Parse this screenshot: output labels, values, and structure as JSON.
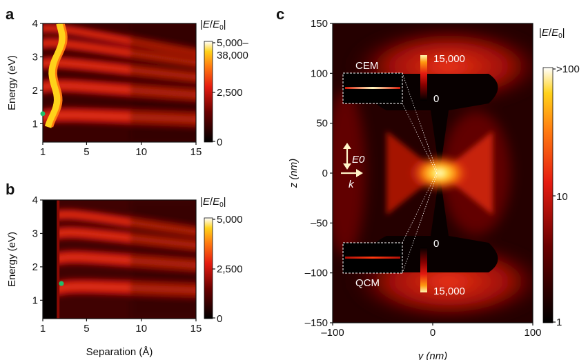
{
  "chart_data": [
    {
      "type": "heatmap",
      "panel_label": "a",
      "xlabel": "",
      "ylabel": "Energy (eV)",
      "xlim": [
        1,
        15
      ],
      "ylim": [
        0.45,
        4
      ],
      "xticks": [
        "1",
        "5",
        "10",
        "15"
      ],
      "yticks": [
        "1",
        "2",
        "3",
        "4"
      ],
      "xtick_values": [
        1,
        5,
        10,
        15
      ],
      "ytick_values": [
        1,
        2,
        3,
        4
      ],
      "colorbar": {
        "title": "|E/E0|",
        "labels": [
          "5,000–",
          "38,000",
          "2,500",
          "0"
        ],
        "range": [
          0,
          5000
        ]
      },
      "marker": {
        "x": 1,
        "y": 1.3,
        "color": "#1fbf6b"
      },
      "resonances": [
        1.3,
        2.2,
        2.9,
        3.5,
        3.95
      ],
      "onset": 1.0
    },
    {
      "type": "heatmap",
      "panel_label": "b",
      "xlabel": "Separation (Å)",
      "ylabel": "Energy (eV)",
      "xlim": [
        1,
        15
      ],
      "ylim": [
        0.45,
        4
      ],
      "xticks": [
        "1",
        "5",
        "10",
        "15"
      ],
      "yticks": [
        "1",
        "2",
        "3",
        "4"
      ],
      "xtick_values": [
        1,
        5,
        10,
        15
      ],
      "ytick_values": [
        1,
        2,
        3,
        4
      ],
      "colorbar": {
        "title": "|E/E0|",
        "labels": [
          "5,000",
          "2,500",
          "0"
        ],
        "range": [
          0,
          5000
        ]
      },
      "marker": {
        "x": 2.7,
        "y": 1.5,
        "color": "#1fbf6b"
      },
      "resonances": [
        1.45,
        2.35,
        3.1,
        3.65
      ],
      "onset": 2.4
    },
    {
      "type": "heatmap",
      "panel_label": "c",
      "xlabel": "y (nm)",
      "ylabel": "z (nm)",
      "xlim": [
        -100,
        100
      ],
      "ylim": [
        -150,
        150
      ],
      "xticks": [
        "–100",
        "0",
        "100"
      ],
      "yticks": [
        "150",
        "100",
        "50",
        "0",
        "–50",
        "–100",
        "–150"
      ],
      "xtick_values": [
        -100,
        0,
        100
      ],
      "ytick_values": [
        150,
        100,
        50,
        0,
        -50,
        -100,
        -150
      ],
      "colorbar": {
        "title": "|E/E0|",
        "labels": [
          ">100",
          "10",
          "1"
        ],
        "scale": "log",
        "range": [
          1,
          100
        ]
      },
      "polarization_label": "E0",
      "wavevector_label": "k",
      "insets": [
        {
          "label": "CEM",
          "colorbar_max": "15,000",
          "colorbar_min": "0"
        },
        {
          "label": "QCM",
          "colorbar_max": "15,000",
          "colorbar_min": "0"
        }
      ]
    }
  ]
}
